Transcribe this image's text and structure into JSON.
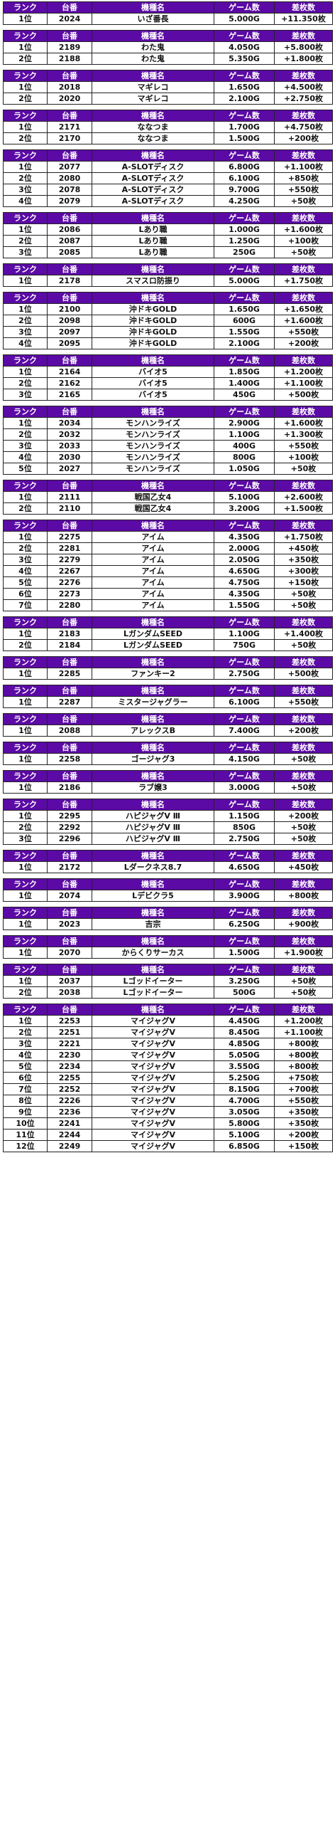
{
  "headers": [
    "ランク",
    "台番",
    "機種名",
    "ゲーム数",
    "差枚数"
  ],
  "groups": [
    {
      "rows": [
        [
          "1位",
          "2024",
          "いざ番長",
          "5.000G",
          "+11.350枚"
        ]
      ]
    },
    {
      "rows": [
        [
          "1位",
          "2189",
          "わた鬼",
          "4.050G",
          "+5.800枚"
        ],
        [
          "2位",
          "2188",
          "わた鬼",
          "5.350G",
          "+1.800枚"
        ]
      ]
    },
    {
      "rows": [
        [
          "1位",
          "2018",
          "マギレコ",
          "1.650G",
          "+4.500枚"
        ],
        [
          "2位",
          "2020",
          "マギレコ",
          "2.100G",
          "+2.750枚"
        ]
      ]
    },
    {
      "rows": [
        [
          "1位",
          "2171",
          "ななつま",
          "1.700G",
          "+4.750枚"
        ],
        [
          "2位",
          "2170",
          "ななつま",
          "1.500G",
          "+200枚"
        ]
      ]
    },
    {
      "rows": [
        [
          "1位",
          "2077",
          "A-SLOTディスク",
          "6.800G",
          "+1.100枚"
        ],
        [
          "2位",
          "2080",
          "A-SLOTディスク",
          "6.100G",
          "+850枚"
        ],
        [
          "3位",
          "2078",
          "A-SLOTディスク",
          "9.700G",
          "+550枚"
        ],
        [
          "4位",
          "2079",
          "A-SLOTディスク",
          "4.250G",
          "+50枚"
        ]
      ]
    },
    {
      "rows": [
        [
          "1位",
          "2086",
          "Lあり職",
          "1.000G",
          "+1.600枚"
        ],
        [
          "2位",
          "2087",
          "Lあり職",
          "1.250G",
          "+100枚"
        ],
        [
          "3位",
          "2085",
          "Lあり職",
          "250G",
          "+50枚"
        ]
      ]
    },
    {
      "rows": [
        [
          "1位",
          "2178",
          "スマスロ防振り",
          "5.000G",
          "+1.750枚"
        ]
      ]
    },
    {
      "rows": [
        [
          "1位",
          "2100",
          "沖ドキGOLD",
          "1.650G",
          "+1.650枚"
        ],
        [
          "2位",
          "2098",
          "沖ドキGOLD",
          "600G",
          "+1.600枚"
        ],
        [
          "3位",
          "2097",
          "沖ドキGOLD",
          "1.550G",
          "+550枚"
        ],
        [
          "4位",
          "2095",
          "沖ドキGOLD",
          "2.100G",
          "+200枚"
        ]
      ]
    },
    {
      "rows": [
        [
          "1位",
          "2164",
          "バイオ5",
          "1.850G",
          "+1.200枚"
        ],
        [
          "2位",
          "2162",
          "バイオ5",
          "1.400G",
          "+1.100枚"
        ],
        [
          "3位",
          "2165",
          "バイオ5",
          "450G",
          "+500枚"
        ]
      ]
    },
    {
      "rows": [
        [
          "1位",
          "2034",
          "モンハンライズ",
          "2.900G",
          "+1.600枚"
        ],
        [
          "2位",
          "2032",
          "モンハンライズ",
          "1.100G",
          "+1.300枚"
        ],
        [
          "3位",
          "2033",
          "モンハンライズ",
          "400G",
          "+550枚"
        ],
        [
          "4位",
          "2030",
          "モンハンライズ",
          "800G",
          "+100枚"
        ],
        [
          "5位",
          "2027",
          "モンハンライズ",
          "1.050G",
          "+50枚"
        ]
      ]
    },
    {
      "rows": [
        [
          "1位",
          "2111",
          "戦国乙女4",
          "5.100G",
          "+2.600枚"
        ],
        [
          "2位",
          "2110",
          "戦国乙女4",
          "3.200G",
          "+1.500枚"
        ]
      ]
    },
    {
      "rows": [
        [
          "1位",
          "2275",
          "アイム",
          "4.350G",
          "+1.750枚"
        ],
        [
          "2位",
          "2281",
          "アイム",
          "2.000G",
          "+450枚"
        ],
        [
          "3位",
          "2279",
          "アイム",
          "2.050G",
          "+350枚"
        ],
        [
          "4位",
          "2267",
          "アイム",
          "4.650G",
          "+300枚"
        ],
        [
          "5位",
          "2276",
          "アイム",
          "4.750G",
          "+150枚"
        ],
        [
          "6位",
          "2273",
          "アイム",
          "4.350G",
          "+50枚"
        ],
        [
          "7位",
          "2280",
          "アイム",
          "1.550G",
          "+50枚"
        ]
      ]
    },
    {
      "rows": [
        [
          "1位",
          "2183",
          "LガンダムSEED",
          "1.100G",
          "+1.400枚"
        ],
        [
          "2位",
          "2184",
          "LガンダムSEED",
          "750G",
          "+50枚"
        ]
      ]
    },
    {
      "rows": [
        [
          "1位",
          "2285",
          "ファンキー2",
          "2.750G",
          "+500枚"
        ]
      ]
    },
    {
      "rows": [
        [
          "1位",
          "2287",
          "ミスタージャグラー",
          "6.100G",
          "+550枚"
        ]
      ]
    },
    {
      "rows": [
        [
          "1位",
          "2088",
          "アレックスB",
          "7.400G",
          "+200枚"
        ]
      ]
    },
    {
      "rows": [
        [
          "1位",
          "2258",
          "ゴージャグ3",
          "4.150G",
          "+50枚"
        ]
      ]
    },
    {
      "rows": [
        [
          "1位",
          "2186",
          "ラブ嬢3",
          "3.000G",
          "+50枚"
        ]
      ]
    },
    {
      "rows": [
        [
          "1位",
          "2295",
          "ハピジャグV Ⅲ",
          "1.150G",
          "+200枚"
        ],
        [
          "2位",
          "2292",
          "ハピジャグV Ⅲ",
          "850G",
          "+50枚"
        ],
        [
          "3位",
          "2296",
          "ハピジャグV Ⅲ",
          "2.750G",
          "+50枚"
        ]
      ]
    },
    {
      "rows": [
        [
          "1位",
          "2172",
          "Lダークネス8.7",
          "4.650G",
          "+450枚"
        ]
      ]
    },
    {
      "rows": [
        [
          "1位",
          "2074",
          "Lデビクラ5",
          "3.900G",
          "+800枚"
        ]
      ]
    },
    {
      "rows": [
        [
          "1位",
          "2023",
          "吉宗",
          "6.250G",
          "+900枚"
        ]
      ]
    },
    {
      "rows": [
        [
          "1位",
          "2070",
          "からくりサーカス",
          "1.500G",
          "+1.900枚"
        ]
      ]
    },
    {
      "rows": [
        [
          "1位",
          "2037",
          "Lゴッドイーター",
          "3.250G",
          "+50枚"
        ],
        [
          "2位",
          "2038",
          "Lゴッドイーター",
          "500G",
          "+50枚"
        ]
      ]
    },
    {
      "rows": [
        [
          "1位",
          "2253",
          "マイジャグV",
          "4.450G",
          "+1.200枚"
        ],
        [
          "2位",
          "2251",
          "マイジャグV",
          "8.450G",
          "+1.100枚"
        ],
        [
          "3位",
          "2221",
          "マイジャグV",
          "4.850G",
          "+800枚"
        ],
        [
          "4位",
          "2230",
          "マイジャグV",
          "5.050G",
          "+800枚"
        ],
        [
          "5位",
          "2234",
          "マイジャグV",
          "3.550G",
          "+800枚"
        ],
        [
          "6位",
          "2255",
          "マイジャグV",
          "5.250G",
          "+750枚"
        ],
        [
          "7位",
          "2252",
          "マイジャグV",
          "8.150G",
          "+700枚"
        ],
        [
          "8位",
          "2226",
          "マイジャグV",
          "4.700G",
          "+550枚"
        ],
        [
          "9位",
          "2236",
          "マイジャグV",
          "3.050G",
          "+350枚"
        ],
        [
          "10位",
          "2241",
          "マイジャグV",
          "5.800G",
          "+350枚"
        ],
        [
          "11位",
          "2244",
          "マイジャグV",
          "5.100G",
          "+200枚"
        ],
        [
          "12位",
          "2249",
          "マイジャグV",
          "6.850G",
          "+150枚"
        ]
      ]
    }
  ]
}
